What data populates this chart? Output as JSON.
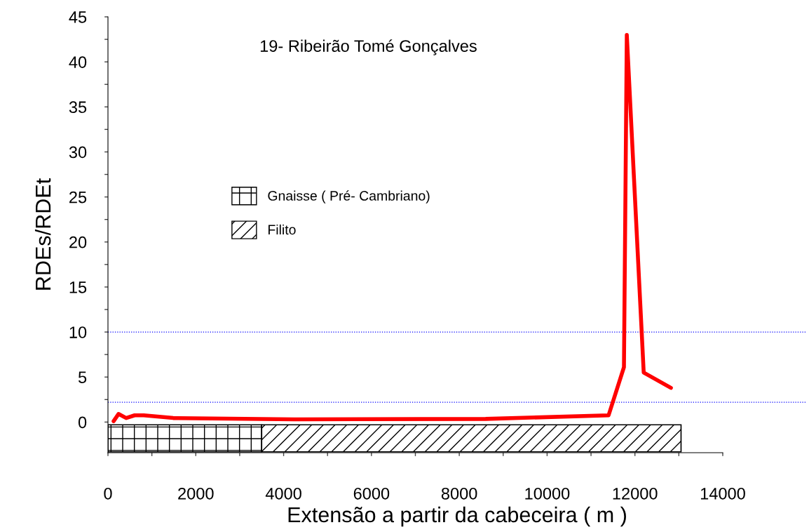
{
  "chart_data": {
    "type": "line",
    "title": "19- Ribeirão Tomé Gonçalves",
    "xlabel": "Extensão a partir da cabeceira ( m )",
    "ylabel": "RDEs/RDEt",
    "x": [
      128,
      240,
      415,
      607,
      815,
      1485,
      4250,
      8600,
      11400,
      11750,
      11815,
      12200,
      12820
    ],
    "series": [
      {
        "color": "#ff0000",
        "values": [
          0.1,
          0.9,
          0.45,
          0.75,
          0.75,
          0.45,
          0.3,
          0.35,
          0.75,
          6.1,
          43,
          5.5,
          3.8
        ]
      }
    ],
    "xlim": [
      0,
      15900
    ],
    "ylim": [
      -3.4,
      45
    ],
    "xticks": [
      0,
      {
        "value": 1000,
        "label": null
      },
      2000,
      {
        "value": 3000,
        "label": null
      },
      4000,
      {
        "value": 5000,
        "label": null
      },
      6000,
      {
        "value": 7000,
        "label": null
      },
      8000,
      {
        "value": 9000,
        "label": null
      },
      10000,
      {
        "value": 11000,
        "label": null
      },
      12000,
      {
        "value": 13000,
        "label": null
      },
      14000
    ],
    "yticks": [
      0,
      {
        "value": 2.5,
        "label": null
      },
      5,
      {
        "value": 7.5,
        "label": null
      },
      10,
      {
        "value": 12.5,
        "label": null
      },
      15,
      {
        "value": 17.5,
        "label": null
      },
      20,
      {
        "value": 22.5,
        "label": null
      },
      25,
      {
        "value": 27.5,
        "label": null
      },
      30,
      {
        "value": 32.5,
        "label": null
      },
      35,
      {
        "value": 37.5,
        "label": null
      },
      40,
      {
        "value": 42.5,
        "label": null
      },
      45
    ],
    "ref_lines": [
      {
        "axis": "y",
        "value": 10,
        "color": "#0000ff",
        "line_style": "dotted"
      },
      {
        "axis": "y",
        "value": 2.2,
        "color": "#0000ff",
        "line_style": "dotted"
      }
    ],
    "bands": [
      {
        "axis": "x",
        "from": 0,
        "to": 3500,
        "label": "Gnaisse ( Pré- Cambriano)"
      },
      {
        "axis": "x",
        "from": 3500,
        "to": 13050,
        "label": "Filito"
      }
    ],
    "legend": "left",
    "grid": false,
    "marker": "none",
    "line_style": "solid"
  }
}
